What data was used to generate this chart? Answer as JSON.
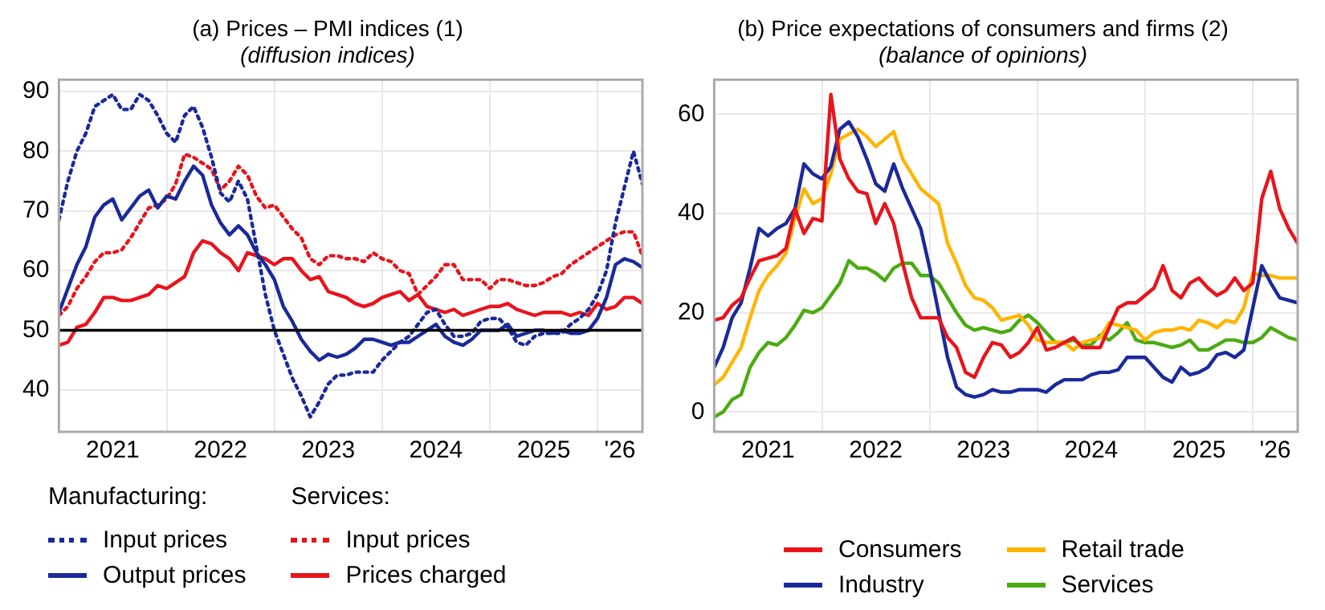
{
  "chart_data": [
    {
      "type": "line",
      "title": "(a) Prices – PMI indices (1)",
      "subtitle": "(diffusion indices)",
      "x": [
        "2021-01",
        "2021-02",
        "2021-03",
        "2021-04",
        "2021-05",
        "2021-06",
        "2021-07",
        "2021-08",
        "2021-09",
        "2021-10",
        "2021-11",
        "2021-12",
        "2022-01",
        "2022-02",
        "2022-03",
        "2022-04",
        "2022-05",
        "2022-06",
        "2022-07",
        "2022-08",
        "2022-09",
        "2022-10",
        "2022-11",
        "2022-12",
        "2023-01",
        "2023-02",
        "2023-03",
        "2023-04",
        "2023-05",
        "2023-06",
        "2023-07",
        "2023-08",
        "2023-09",
        "2023-10",
        "2023-11",
        "2023-12",
        "2024-01",
        "2024-02",
        "2024-03",
        "2024-04",
        "2024-05",
        "2024-06",
        "2024-07",
        "2024-08",
        "2024-09",
        "2024-10",
        "2024-11",
        "2024-12",
        "2025-01",
        "2025-02",
        "2025-03",
        "2025-04",
        "2025-05",
        "2025-06",
        "2025-07",
        "2025-08",
        "2025-09",
        "2025-10",
        "2025-11",
        "2025-12",
        "2026-01",
        "2026-02",
        "2026-03",
        "2026-04",
        "2026-05",
        "2026-06"
      ],
      "legend_title": [
        "Manufacturing:",
        "Services:"
      ],
      "series": [
        {
          "name": "Input prices",
          "color": "#1a2a9a",
          "line_style": "dotted",
          "values": [
            68.5,
            75,
            80,
            83,
            87.5,
            88.5,
            89.5,
            87,
            87,
            89.5,
            88.5,
            86,
            83,
            81.5,
            86,
            87.5,
            84,
            79,
            73,
            71.5,
            75,
            72,
            64,
            56,
            50,
            46,
            42,
            39,
            35.5,
            38,
            41,
            42.5,
            42.5,
            43,
            43,
            43,
            45,
            46.5,
            48,
            49,
            51,
            53,
            53.5,
            51,
            49,
            49,
            49.5,
            51.5,
            52,
            52,
            50.5,
            48,
            47.5,
            49,
            49.5,
            49.5,
            49.5,
            51,
            52,
            53.5,
            56,
            60,
            68,
            74,
            80,
            74.5
          ]
        },
        {
          "name": "Output prices",
          "color": "#1a2a9a",
          "line_style": "solid",
          "values": [
            53,
            57,
            61,
            64,
            69,
            71,
            72,
            68.5,
            70.5,
            72.5,
            73.5,
            70.5,
            72.5,
            72,
            75,
            77.5,
            76,
            71,
            68,
            66,
            67.5,
            66,
            63,
            61,
            58.5,
            54,
            51.5,
            48.5,
            46.5,
            45,
            46,
            45.5,
            46,
            47,
            48.5,
            48.5,
            48,
            47.5,
            48,
            48,
            49,
            50,
            51,
            49,
            48,
            47.5,
            48.5,
            50,
            50,
            50,
            51,
            49,
            49.5,
            50,
            50,
            49.5,
            50,
            49.5,
            49.5,
            50,
            52,
            55.5,
            61,
            62,
            61.5,
            60.5
          ]
        },
        {
          "name": "Input prices",
          "color": "#e8141c",
          "line_style": "dotted",
          "values": [
            52.5,
            54,
            57,
            59,
            61.5,
            63,
            63,
            63.5,
            65.5,
            68,
            70.5,
            71,
            72,
            74.5,
            79.5,
            79,
            78,
            77,
            73.5,
            75,
            77.5,
            76,
            72.5,
            70.5,
            71,
            69,
            67,
            65.5,
            62,
            61,
            62.5,
            62.5,
            62,
            62,
            61.5,
            63,
            62,
            61.5,
            60,
            59.5,
            56,
            57.5,
            59,
            61,
            61,
            58.5,
            58.5,
            58.5,
            57,
            58.5,
            58.5,
            58,
            57.5,
            57.5,
            58,
            59,
            59.5,
            61,
            62,
            63,
            64,
            65,
            66,
            66.5,
            66.5,
            62.5
          ]
        },
        {
          "name": "Prices charged",
          "color": "#e8141c",
          "line_style": "solid",
          "values": [
            47.5,
            48,
            50.5,
            51,
            53,
            55.5,
            55.5,
            55,
            55,
            55.5,
            56,
            57.5,
            57,
            58,
            59,
            63,
            65,
            64.5,
            63,
            62,
            60,
            63,
            62.5,
            62,
            61,
            62,
            62,
            60,
            58.5,
            59,
            56.5,
            56,
            55.5,
            54.5,
            54,
            54.5,
            55.5,
            56,
            56.5,
            55,
            56,
            54,
            53.5,
            53,
            53.5,
            52.5,
            53,
            53.5,
            54,
            54,
            54.5,
            53.5,
            53,
            52.5,
            53,
            53,
            53,
            52.5,
            53,
            52.5,
            54.5,
            53.5,
            54,
            55.5,
            55.5,
            54.5
          ]
        }
      ],
      "xlim": [
        "2021-01",
        "2026-06"
      ],
      "xticks": [
        {
          "value": "2021-01",
          "label": null
        },
        {
          "value": "2021-07",
          "label": "2021"
        },
        {
          "value": "2022-01",
          "label": null
        },
        {
          "value": "2022-07",
          "label": "2022"
        },
        {
          "value": "2023-01",
          "label": null
        },
        {
          "value": "2023-07",
          "label": "2023"
        },
        {
          "value": "2024-01",
          "label": null
        },
        {
          "value": "2024-07",
          "label": "2024"
        },
        {
          "value": "2025-01",
          "label": null
        },
        {
          "value": "2025-07",
          "label": "2025"
        },
        {
          "value": "2026-01",
          "label": null
        },
        {
          "value": "2026-03-16",
          "label": "'26"
        }
      ],
      "ylim": [
        33,
        92
      ],
      "yticks": [
        40,
        50,
        60,
        70,
        80,
        90
      ],
      "ref_lines": [
        {
          "axis": "y",
          "value": 50,
          "color": "#000000"
        }
      ],
      "grid": true,
      "legend": "bottom",
      "marker": "none"
    },
    {
      "type": "line",
      "title": "(b) Price expectations of consumers and firms (2)",
      "subtitle": "(balance of opinions)",
      "x": [
        "2021-01",
        "2021-02",
        "2021-03",
        "2021-04",
        "2021-05",
        "2021-06",
        "2021-07",
        "2021-08",
        "2021-09",
        "2021-10",
        "2021-11",
        "2021-12",
        "2022-01",
        "2022-02",
        "2022-03",
        "2022-04",
        "2022-05",
        "2022-06",
        "2022-07",
        "2022-08",
        "2022-09",
        "2022-10",
        "2022-11",
        "2022-12",
        "2023-01",
        "2023-02",
        "2023-03",
        "2023-04",
        "2023-05",
        "2023-06",
        "2023-07",
        "2023-08",
        "2023-09",
        "2023-10",
        "2023-11",
        "2023-12",
        "2024-01",
        "2024-02",
        "2024-03",
        "2024-04",
        "2024-05",
        "2024-06",
        "2024-07",
        "2024-08",
        "2024-09",
        "2024-10",
        "2024-11",
        "2024-12",
        "2025-01",
        "2025-02",
        "2025-03",
        "2025-04",
        "2025-05",
        "2025-06",
        "2025-07",
        "2025-08",
        "2025-09",
        "2025-10",
        "2025-11",
        "2025-12",
        "2026-01",
        "2026-02",
        "2026-03",
        "2026-04",
        "2026-05",
        "2026-06"
      ],
      "series": [
        {
          "name": "Consumers",
          "color": "#e8141c",
          "line_style": "solid",
          "values": [
            18.5,
            19,
            21.5,
            23,
            27,
            30.5,
            31,
            31.5,
            33,
            41,
            36,
            39,
            38.5,
            64,
            51,
            47,
            44.5,
            44,
            38,
            42,
            38,
            30,
            23,
            19,
            19,
            19,
            15,
            13,
            8,
            7,
            11,
            14,
            13.5,
            11,
            12,
            14,
            17,
            12.5,
            13,
            14,
            15,
            13,
            13,
            13,
            17,
            21,
            22,
            22,
            23.5,
            25,
            29.5,
            24.5,
            23,
            26,
            27,
            25,
            23.5,
            24.5,
            27,
            24.5,
            26,
            43,
            48.5,
            41,
            37,
            34
          ]
        },
        {
          "name": "Industry",
          "color": "#1a2a9a",
          "line_style": "solid",
          "values": [
            9,
            13,
            19,
            22,
            29,
            37,
            35.5,
            37,
            38,
            41,
            50,
            48,
            47,
            49.5,
            57,
            58.5,
            55.5,
            51,
            46,
            44.5,
            50,
            45,
            41,
            37,
            29,
            20,
            11,
            5,
            3.5,
            3,
            3.5,
            4.5,
            4,
            4,
            4.5,
            4.5,
            4.5,
            4,
            5.5,
            6.5,
            6.5,
            6.5,
            7.5,
            8,
            8,
            8.5,
            11,
            11,
            11,
            9,
            7,
            6,
            9,
            7.5,
            8,
            9,
            11.5,
            12,
            11,
            12.5,
            21,
            29.5,
            26,
            23,
            22.5,
            22
          ]
        },
        {
          "name": "Retail trade",
          "color": "#ffb400",
          "line_style": "solid",
          "values": [
            5.5,
            7,
            10,
            13,
            19,
            24.5,
            27.5,
            29.5,
            32,
            39,
            45,
            42,
            43,
            48,
            55,
            56,
            57,
            55.5,
            53.5,
            55,
            56.5,
            51,
            48,
            45,
            43.5,
            42,
            34,
            30,
            25.5,
            23,
            22.5,
            21,
            18.5,
            19,
            19.5,
            17.5,
            14.5,
            14,
            14,
            14,
            12.5,
            14,
            14.5,
            15,
            18,
            17.5,
            17,
            16.5,
            14.5,
            16,
            16.5,
            16.5,
            17,
            16.5,
            18.5,
            18,
            17,
            18.5,
            18,
            21,
            28,
            27.5,
            27.5,
            27,
            27,
            27
          ]
        },
        {
          "name": "Services",
          "color": "#4aab11",
          "line_style": "solid",
          "values": [
            -1,
            0,
            2.5,
            3.5,
            9,
            12,
            14,
            13.5,
            15,
            17.5,
            20.5,
            20,
            21,
            23.5,
            26,
            30.5,
            29,
            29,
            28,
            26.5,
            29,
            30,
            30,
            27.5,
            27.5,
            26,
            23,
            20,
            17.5,
            16.5,
            17,
            16.5,
            16,
            16.5,
            18.5,
            19.5,
            18,
            16,
            14,
            14,
            14.5,
            13.5,
            13.5,
            15.5,
            14.5,
            16,
            18,
            14.5,
            14,
            14,
            13.5,
            13,
            13.5,
            14.5,
            12.5,
            12.5,
            13.5,
            14.5,
            14.5,
            14,
            14,
            15,
            17,
            16,
            15,
            14.5
          ]
        }
      ],
      "xlim": [
        "2021-01",
        "2026-06"
      ],
      "xticks": [
        {
          "value": "2021-01",
          "label": null
        },
        {
          "value": "2021-07",
          "label": "2021"
        },
        {
          "value": "2022-01",
          "label": null
        },
        {
          "value": "2022-07",
          "label": "2022"
        },
        {
          "value": "2023-01",
          "label": null
        },
        {
          "value": "2023-07",
          "label": "2023"
        },
        {
          "value": "2024-01",
          "label": null
        },
        {
          "value": "2024-07",
          "label": "2024"
        },
        {
          "value": "2025-01",
          "label": null
        },
        {
          "value": "2025-07",
          "label": "2025"
        },
        {
          "value": "2026-01",
          "label": null
        },
        {
          "value": "2026-03-16",
          "label": "'26"
        }
      ],
      "ylim": [
        -4,
        67
      ],
      "yticks": [
        0,
        20,
        40,
        60
      ],
      "grid": true,
      "legend": "bottom",
      "marker": "none"
    }
  ]
}
